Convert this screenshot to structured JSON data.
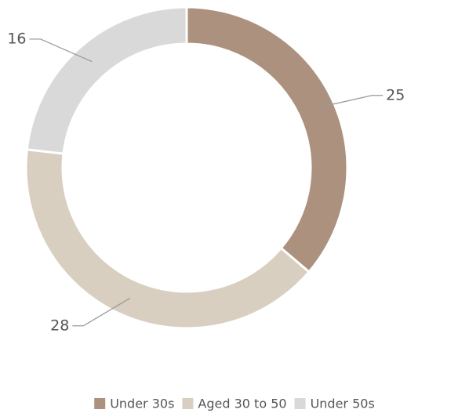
{
  "chart_data": {
    "type": "pie",
    "donut": true,
    "categories": [
      "Under 30s",
      "Aged 30 to 50",
      "Under 50s"
    ],
    "values": [
      25,
      28,
      16
    ],
    "colors": [
      "#ab917e",
      "#d8cfc0",
      "#d9d9d9"
    ],
    "legend": "bottom"
  }
}
